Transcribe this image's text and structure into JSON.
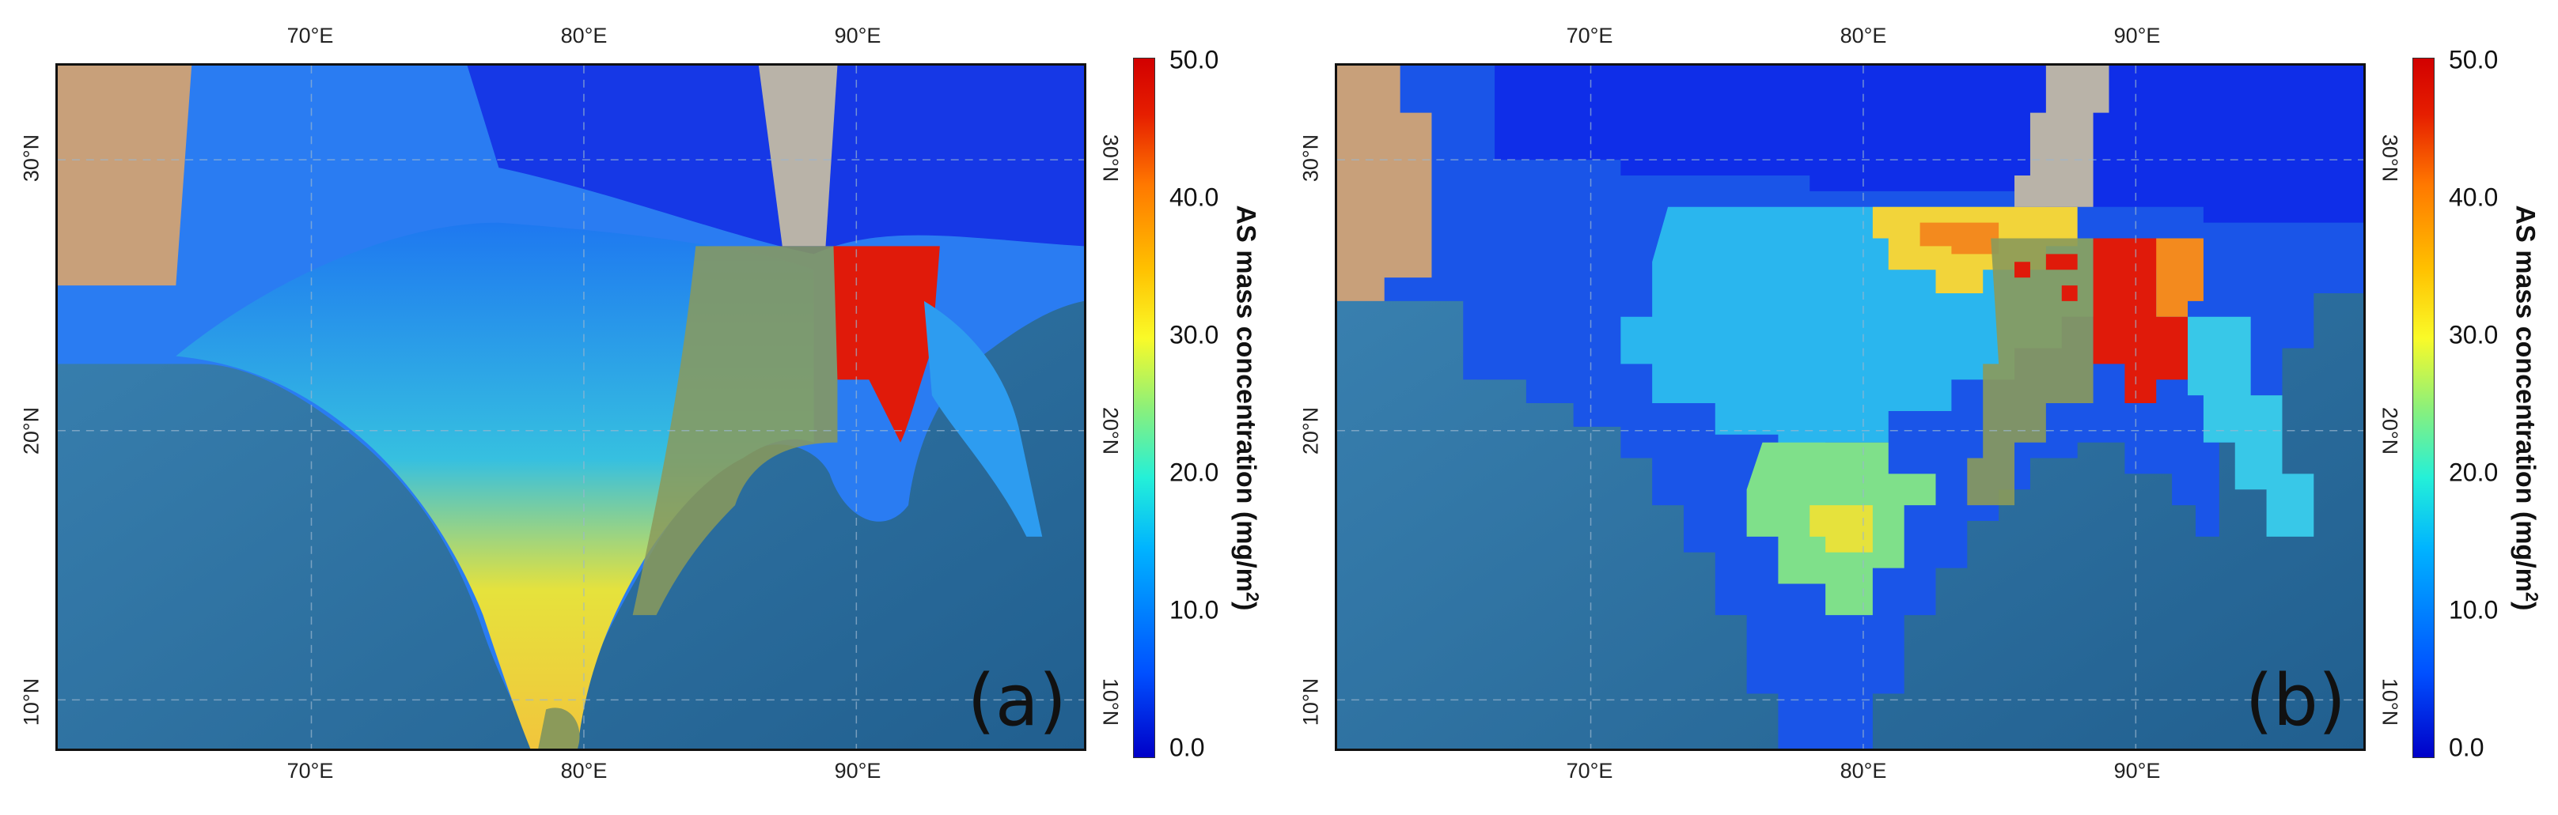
{
  "panels": [
    {
      "id": "a",
      "label": "(a)",
      "lon_ticks": [
        "70°E",
        "80°E",
        "90°E"
      ],
      "lat_ticks": [
        "10°N",
        "20°N",
        "30°N"
      ],
      "colorbar": {
        "title_main": "AS mass concentration (mg/m",
        "title_sup": "2",
        "title_end": ")",
        "ticks": [
          "50.0",
          "40.0",
          "30.0",
          "20.0",
          "10.0",
          "0.0"
        ],
        "min": 0,
        "max": 50
      }
    },
    {
      "id": "b",
      "label": "(b)",
      "lon_ticks": [
        "70°E",
        "80°E",
        "90°E"
      ],
      "lat_ticks": [
        "10°N",
        "20°N",
        "30°N"
      ],
      "colorbar": {
        "title_main": "AS mass concentration (mg/m",
        "title_sup": "2",
        "title_end": ")",
        "ticks": [
          "50.0",
          "40.0",
          "30.0",
          "20.0",
          "10.0",
          "0.0"
        ],
        "min": 0,
        "max": 50
      }
    }
  ],
  "colors": {
    "ocean": "#2e78a8",
    "desert": "#c9a27c",
    "mountain": "#b9b3a8",
    "low": "#1a3cf0",
    "mid_low": "#2a9cf6",
    "mid": "#3fd6d6",
    "mid_high": "#d8e850",
    "high_yellow": "#f6d63a",
    "high_orange": "#f38a1e",
    "peak": "#e01a0a",
    "grey_band": "#8b9a5a"
  }
}
